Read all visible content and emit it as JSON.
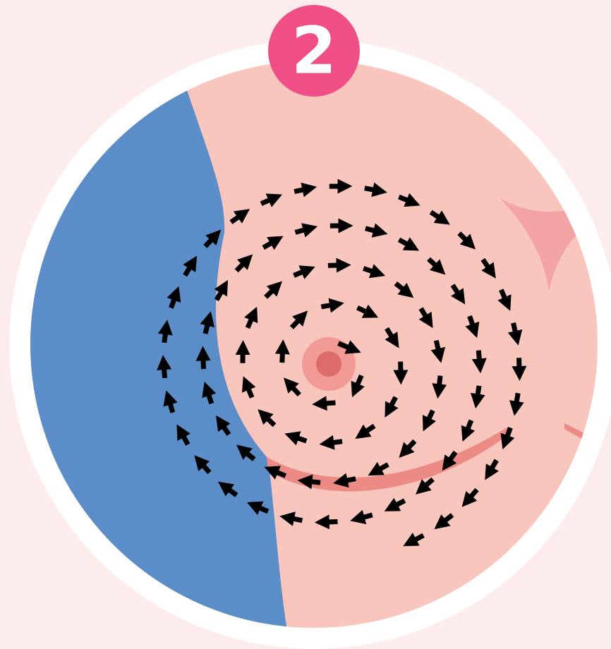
{
  "badge": {
    "label": "2"
  }
}
